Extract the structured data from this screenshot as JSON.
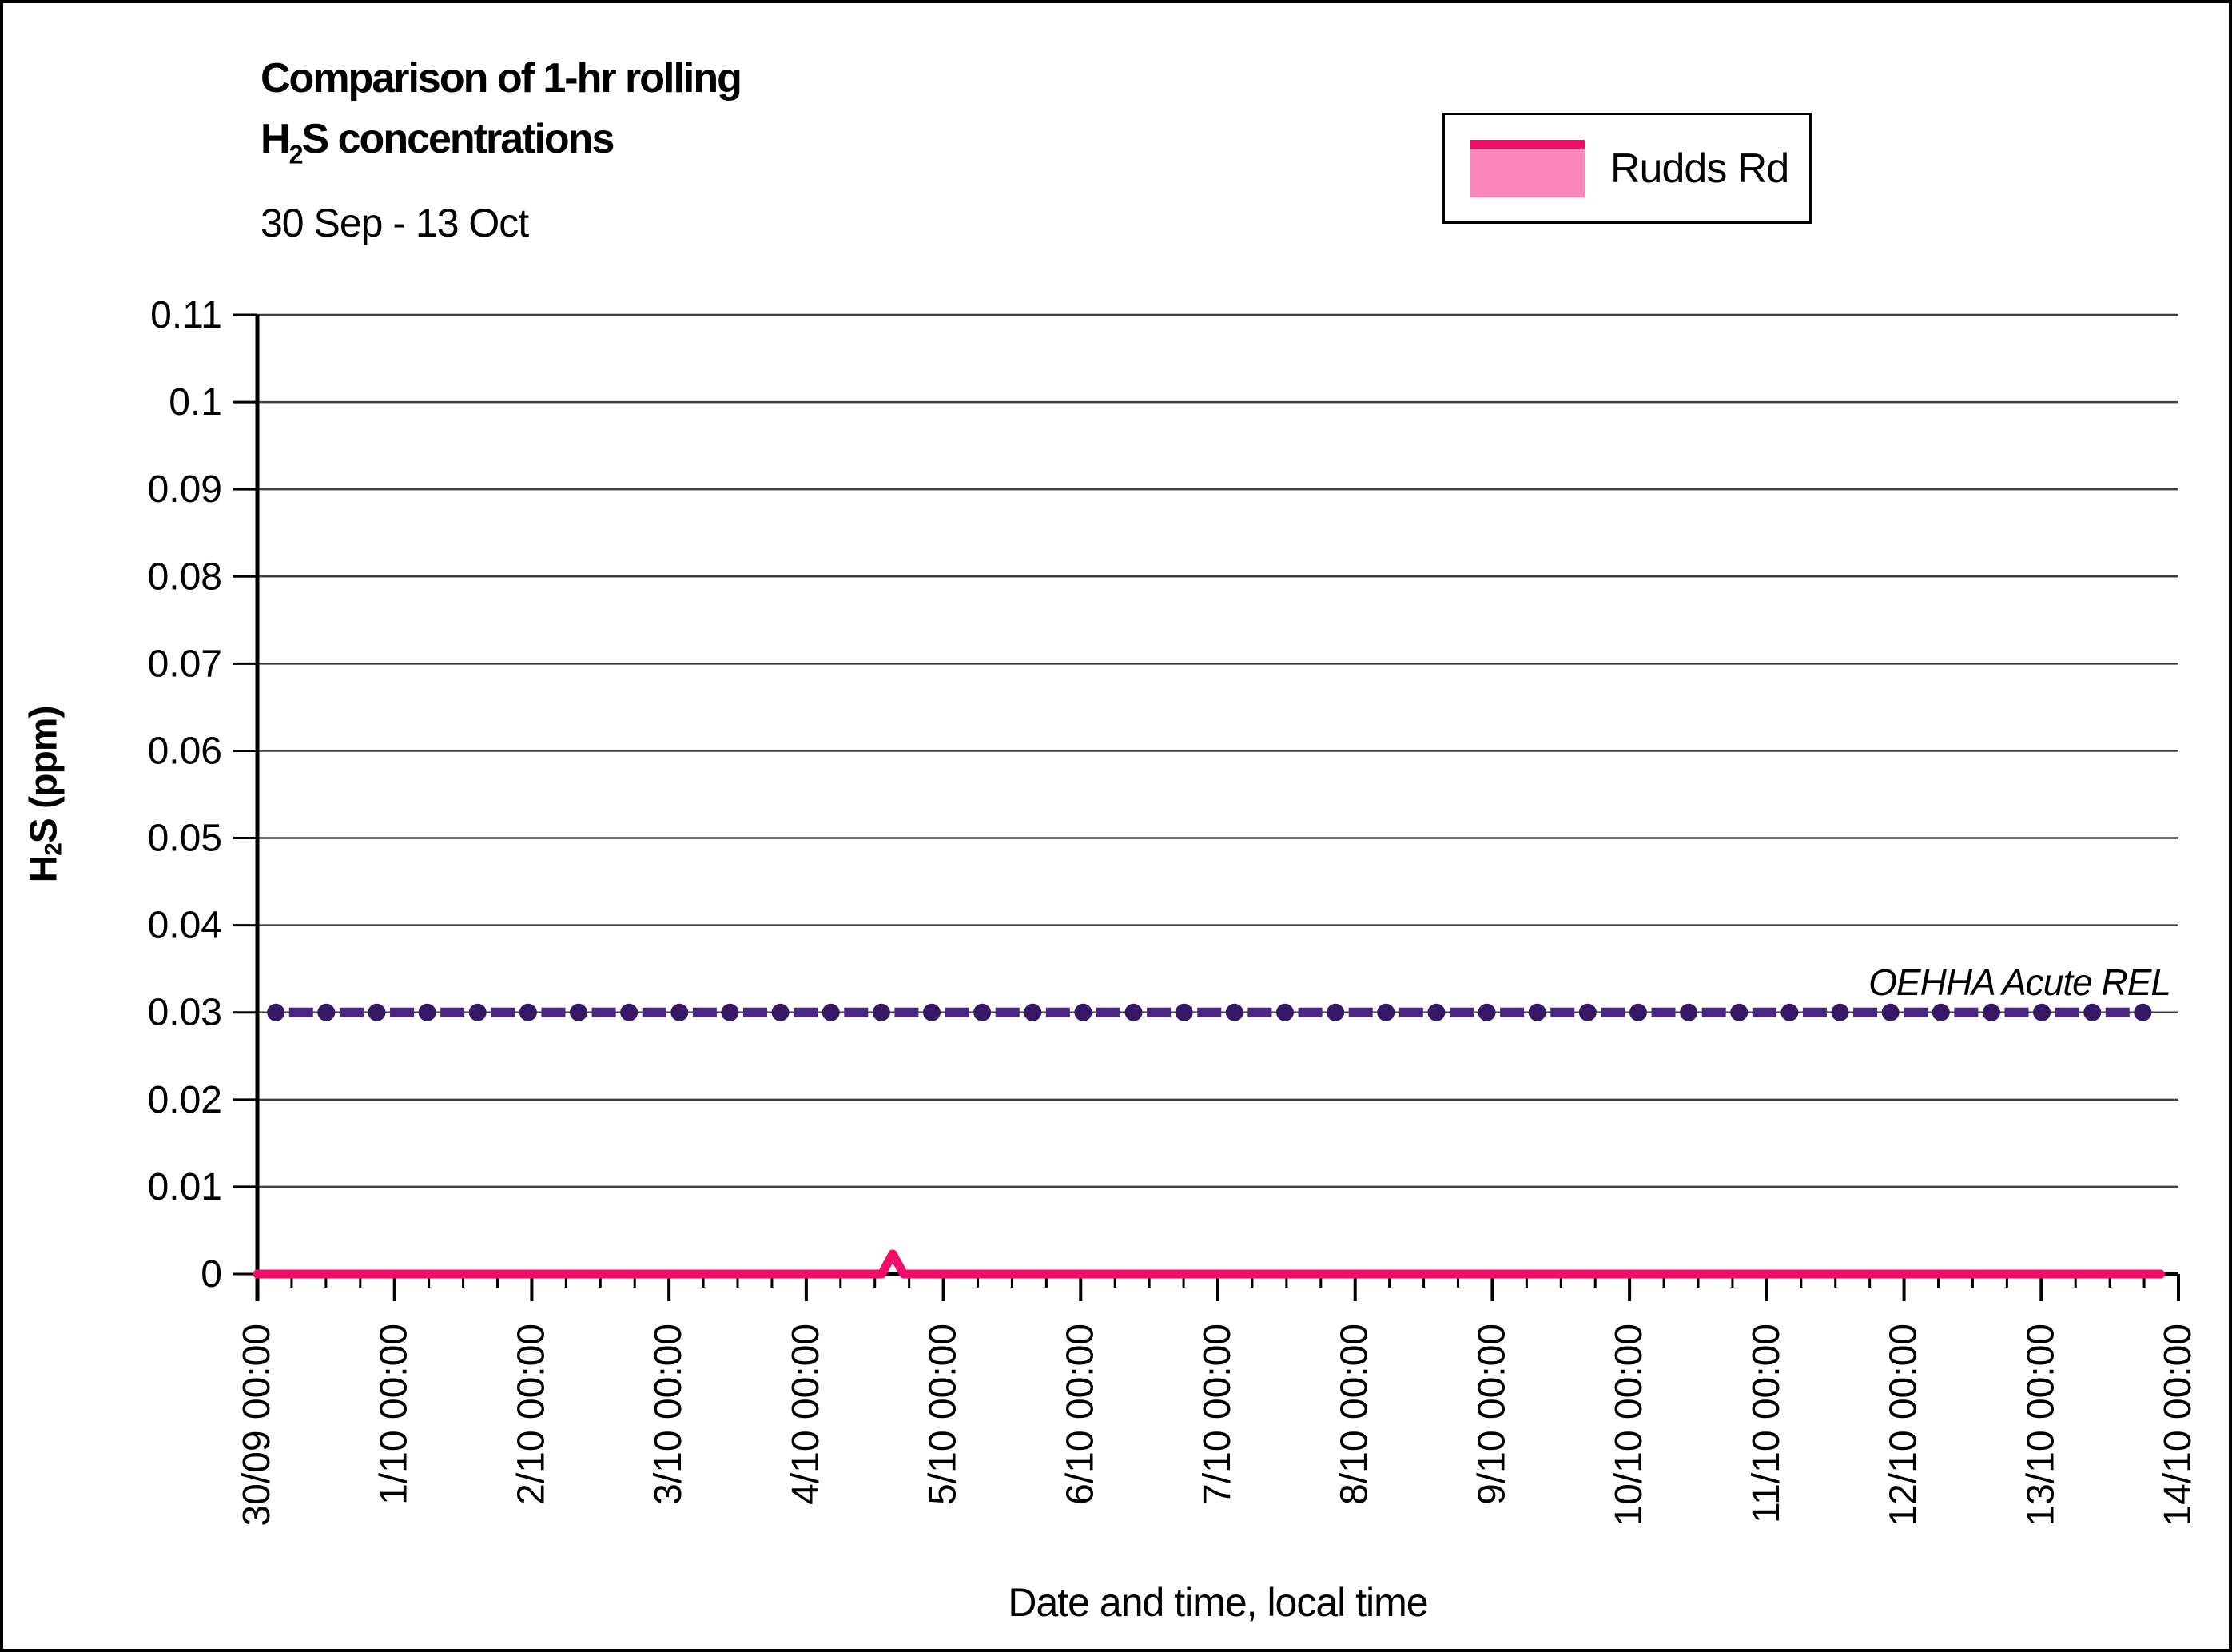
{
  "title": {
    "line1": "Comparison of 1-hr rolling",
    "line2_prefix": "H",
    "line2_sub": "2",
    "line2_suffix": "S concentrations",
    "subtitle": "30 Sep - 13 Oct"
  },
  "legend": {
    "label": "Rudds Rd",
    "fill_color": "#FA86BB",
    "line_color": "#F20D69"
  },
  "axes": {
    "y_title_prefix": "H",
    "y_title_sub": "2",
    "y_title_suffix": "S (ppm)",
    "x_title": "Date and time, local time"
  },
  "annotation": {
    "text": "OEHHA Acute REL"
  },
  "colors": {
    "grid": "#3f3f3f",
    "axis": "#000000",
    "series_pink": "#F20D69",
    "series_fill": "#FA86BB",
    "rel_marker": "#371866",
    "rel_dash": "#4B2583"
  },
  "chart_data": {
    "type": "line",
    "title": "Comparison of 1-hr rolling H2S concentrations",
    "subtitle": "30 Sep - 13 Oct",
    "xlabel": "Date and time, local time",
    "ylabel": "H2S (ppm)",
    "ylim": [
      0,
      0.11
    ],
    "ytick_step": 0.01,
    "ytick_labels": [
      "0",
      "0.01",
      "0.02",
      "0.03",
      "0.04",
      "0.05",
      "0.06",
      "0.07",
      "0.08",
      "0.09",
      "0.1",
      "0.11"
    ],
    "xtick_labels": [
      "30/09 00:00",
      "1/10 00:00",
      "2/10 00:00",
      "3/10 00:00",
      "4/10 00:00",
      "5/10 00:00",
      "6/10 00:00",
      "7/10 00:00",
      "8/10 00:00",
      "9/10 00:00",
      "10/10 00:00",
      "11/10 00:00",
      "12/10 00:00",
      "13/10 00:00",
      "14/10 00:00"
    ],
    "x_minor_ticks_between_majors": 3,
    "grid": "horizontal",
    "legend_position": "top-right",
    "series": [
      {
        "name": "Rudds Rd",
        "type": "area",
        "line_color": "#F20D69",
        "fill_color": "#FA86BB",
        "x_unit": "days_since_30/09_00:00",
        "points": [
          {
            "day": 0.0,
            "ppm": 0.0
          },
          {
            "day": 4.55,
            "ppm": 0.0
          },
          {
            "day": 4.63,
            "ppm": 0.0023
          },
          {
            "day": 4.71,
            "ppm": 0.0
          },
          {
            "day": 13.87,
            "ppm": 0.0
          }
        ]
      },
      {
        "name": "OEHHA Acute REL",
        "type": "reference",
        "value_ppm": 0.03,
        "day_start": 0.135,
        "day_end": 13.74,
        "marker_count": 38,
        "marker_color": "#371866",
        "dash_color": "#4B2583",
        "label": "OEHHA Acute REL"
      }
    ]
  }
}
